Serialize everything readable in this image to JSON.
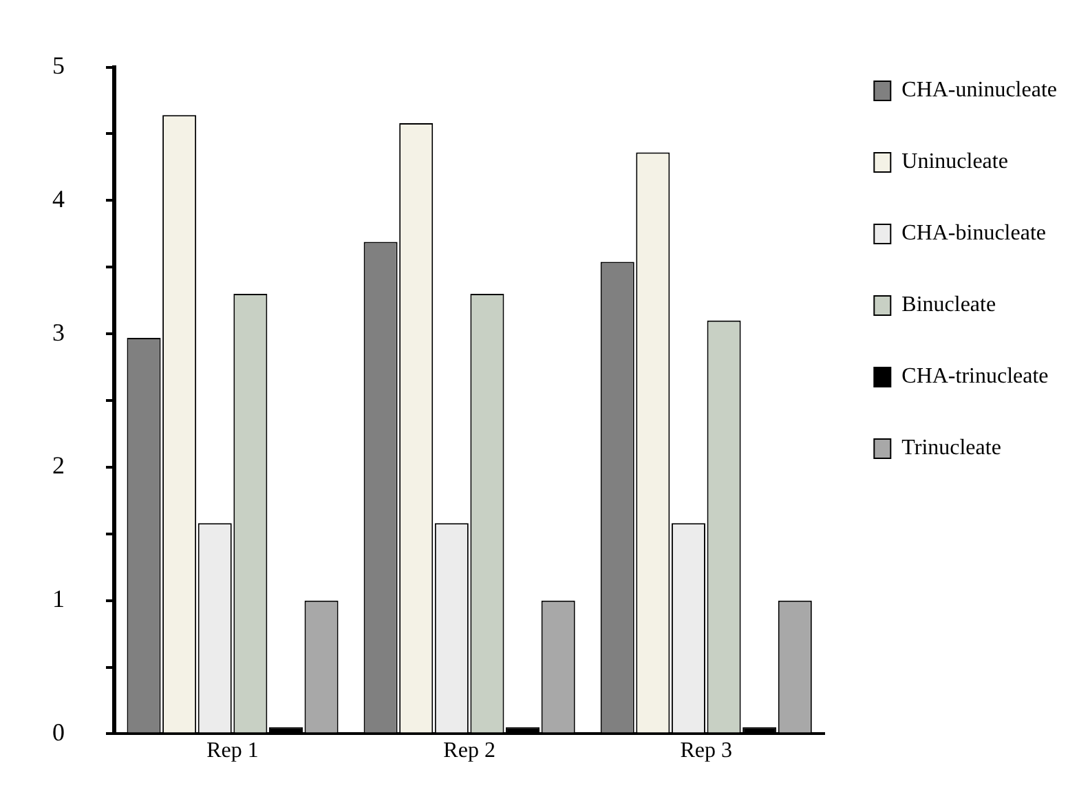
{
  "chart_data": {
    "type": "bar",
    "categories": [
      "Rep 1",
      "Rep 2",
      "Rep 3"
    ],
    "series": [
      {
        "name": "CHA-uninucleate",
        "color": "#808080",
        "values": [
          2.97,
          3.69,
          3.54
        ]
      },
      {
        "name": "Uninucleate",
        "color": "#f4f2e6",
        "values": [
          4.64,
          4.58,
          4.36
        ]
      },
      {
        "name": "CHA-binucleate",
        "color": "#ececec",
        "values": [
          1.58,
          1.58,
          1.58
        ]
      },
      {
        "name": "Binucleate",
        "color": "#c8d0c4",
        "values": [
          3.3,
          3.3,
          3.1
        ]
      },
      {
        "name": "CHA-trinucleate",
        "color": "#000000",
        "values": [
          0.05,
          0.05,
          0.05
        ]
      },
      {
        "name": "Trinucleate",
        "color": "#a8a8a8",
        "values": [
          1,
          1,
          1
        ]
      }
    ],
    "ylim": [
      0,
      5
    ],
    "yticks": [
      0,
      {
        "value": 0.5,
        "label": null
      },
      1,
      {
        "value": 1.5,
        "label": null
      },
      2,
      {
        "value": 2.5,
        "label": null
      },
      3,
      {
        "value": 3.5,
        "label": null
      },
      4,
      {
        "value": 4.5,
        "label": null
      },
      5
    ],
    "grid": false,
    "legend": "right"
  }
}
